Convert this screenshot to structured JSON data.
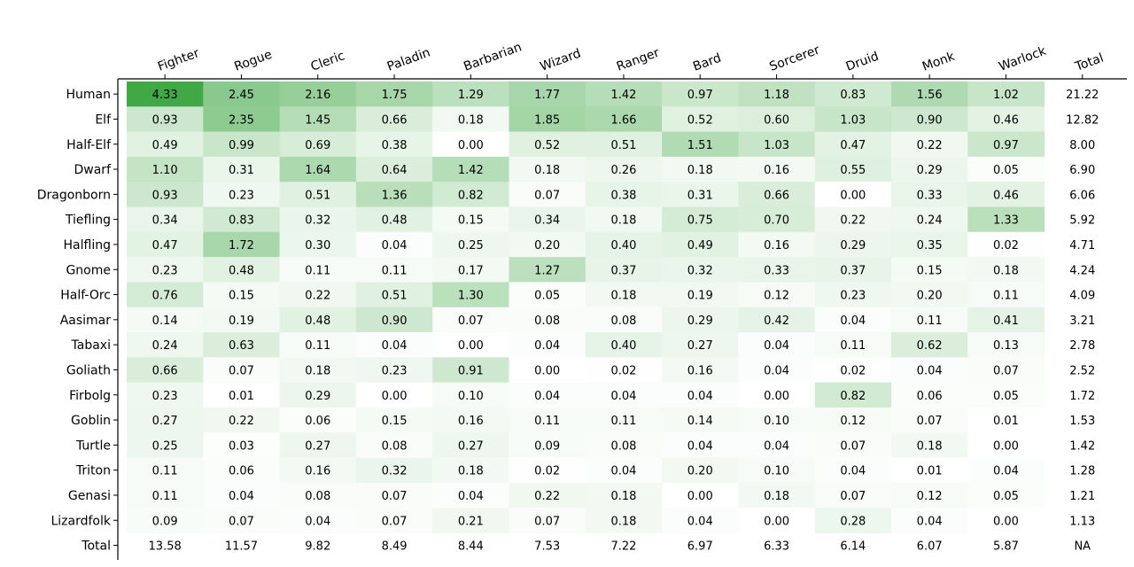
{
  "chart_data": {
    "type": "heatmap",
    "title": "",
    "xlabel": "",
    "ylabel": "",
    "colormap": "Greens",
    "color_max_hex": "#41a846",
    "color_min_hex": "#ffffff",
    "columns": [
      "Fighter",
      "Rogue",
      "Cleric",
      "Paladin",
      "Barbarian",
      "Wizard",
      "Ranger",
      "Bard",
      "Sorcerer",
      "Druid",
      "Monk",
      "Warlock"
    ],
    "total_column_label": "Total",
    "rows": [
      "Human",
      "Elf",
      "Half-Elf",
      "Dwarf",
      "Dragonborn",
      "Tiefling",
      "Halfling",
      "Gnome",
      "Half-Orc",
      "Aasimar",
      "Tabaxi",
      "Goliath",
      "Firbolg",
      "Goblin",
      "Turtle",
      "Triton",
      "Genasi",
      "Lizardfolk"
    ],
    "total_row_label": "Total",
    "values": [
      [
        4.33,
        2.45,
        2.16,
        1.75,
        1.29,
        1.77,
        1.42,
        0.97,
        1.18,
        0.83,
        1.56,
        1.02
      ],
      [
        0.93,
        2.35,
        1.45,
        0.66,
        0.18,
        1.85,
        1.66,
        0.52,
        0.6,
        1.03,
        0.9,
        0.46
      ],
      [
        0.49,
        0.99,
        0.69,
        0.38,
        0.0,
        0.52,
        0.51,
        1.51,
        1.03,
        0.47,
        0.22,
        0.97
      ],
      [
        1.1,
        0.31,
        1.64,
        0.64,
        1.42,
        0.18,
        0.26,
        0.18,
        0.16,
        0.55,
        0.29,
        0.05
      ],
      [
        0.93,
        0.23,
        0.51,
        1.36,
        0.82,
        0.07,
        0.38,
        0.31,
        0.66,
        0.0,
        0.33,
        0.46
      ],
      [
        0.34,
        0.83,
        0.32,
        0.48,
        0.15,
        0.34,
        0.18,
        0.75,
        0.7,
        0.22,
        0.24,
        1.33
      ],
      [
        0.47,
        1.72,
        0.3,
        0.04,
        0.25,
        0.2,
        0.4,
        0.49,
        0.16,
        0.29,
        0.35,
        0.02
      ],
      [
        0.23,
        0.48,
        0.11,
        0.11,
        0.17,
        1.27,
        0.37,
        0.32,
        0.33,
        0.37,
        0.15,
        0.18
      ],
      [
        0.76,
        0.15,
        0.22,
        0.51,
        1.3,
        0.05,
        0.18,
        0.19,
        0.12,
        0.23,
        0.2,
        0.11
      ],
      [
        0.14,
        0.19,
        0.48,
        0.9,
        0.07,
        0.08,
        0.08,
        0.29,
        0.42,
        0.04,
        0.11,
        0.41
      ],
      [
        0.24,
        0.63,
        0.11,
        0.04,
        0.0,
        0.04,
        0.4,
        0.27,
        0.04,
        0.11,
        0.62,
        0.13
      ],
      [
        0.66,
        0.07,
        0.18,
        0.23,
        0.91,
        0.0,
        0.02,
        0.16,
        0.04,
        0.02,
        0.04,
        0.07
      ],
      [
        0.23,
        0.01,
        0.29,
        0.0,
        0.1,
        0.04,
        0.04,
        0.04,
        0.0,
        0.82,
        0.06,
        0.05
      ],
      [
        0.27,
        0.22,
        0.06,
        0.15,
        0.16,
        0.11,
        0.11,
        0.14,
        0.1,
        0.12,
        0.07,
        0.01
      ],
      [
        0.25,
        0.03,
        0.27,
        0.08,
        0.27,
        0.09,
        0.08,
        0.04,
        0.04,
        0.07,
        0.18,
        0.0
      ],
      [
        0.11,
        0.06,
        0.16,
        0.32,
        0.18,
        0.02,
        0.04,
        0.2,
        0.1,
        0.04,
        0.01,
        0.04
      ],
      [
        0.11,
        0.04,
        0.08,
        0.07,
        0.04,
        0.22,
        0.18,
        0.0,
        0.18,
        0.07,
        0.12,
        0.05
      ],
      [
        0.09,
        0.07,
        0.04,
        0.07,
        0.21,
        0.07,
        0.18,
        0.04,
        0.0,
        0.28,
        0.04,
        0.0
      ]
    ],
    "row_totals": [
      "21.22",
      "12.82",
      "8.00",
      "6.90",
      "6.06",
      "5.92",
      "4.71",
      "4.24",
      "4.09",
      "3.21",
      "2.78",
      "2.52",
      "1.72",
      "1.53",
      "1.42",
      "1.28",
      "1.21",
      "1.13"
    ],
    "column_totals": [
      "13.58",
      "11.57",
      "9.82",
      "8.49",
      "8.44",
      "7.53",
      "7.22",
      "6.97",
      "6.33",
      "6.14",
      "6.07",
      "5.87"
    ],
    "grand_total": "NA"
  }
}
